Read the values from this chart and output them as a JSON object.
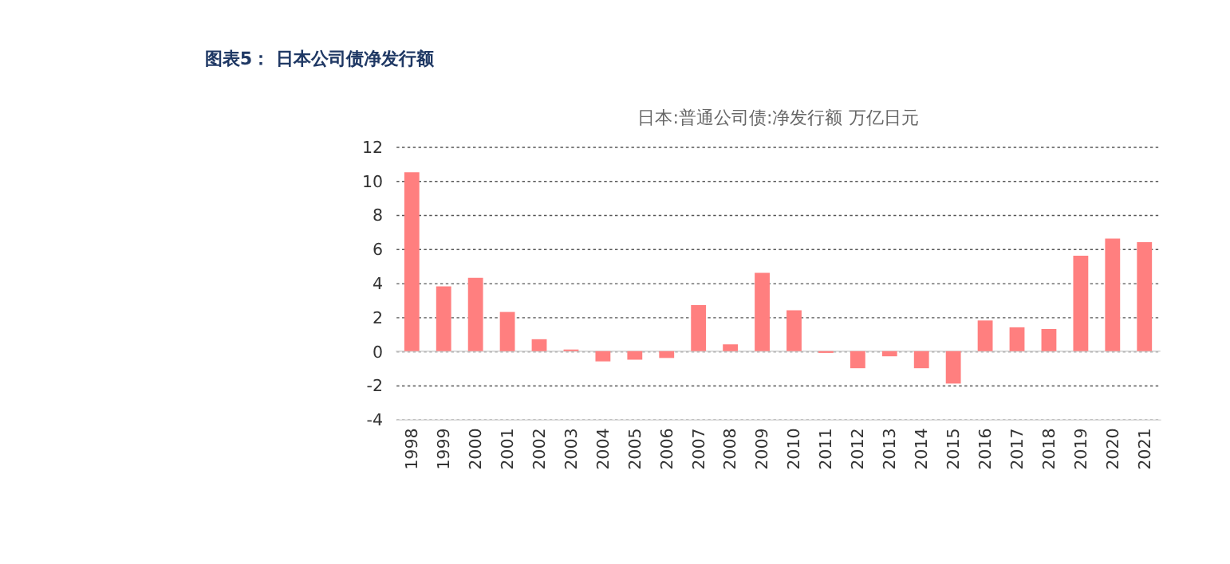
{
  "chart_data": {
    "type": "bar",
    "title": "图表5： 日本公司债净发行额",
    "subtitle": "日本:普通公司债:净发行额 万亿日元",
    "categories": [
      "1998",
      "1999",
      "2000",
      "2001",
      "2002",
      "2003",
      "2004",
      "2005",
      "2006",
      "2007",
      "2008",
      "2009",
      "2010",
      "2011",
      "2012",
      "2013",
      "2014",
      "2015",
      "2016",
      "2017",
      "2018",
      "2019",
      "2020",
      "2021"
    ],
    "values": [
      10.5,
      3.8,
      4.3,
      2.3,
      0.7,
      0.1,
      -0.6,
      -0.5,
      -0.4,
      2.7,
      0.4,
      4.6,
      2.4,
      -0.1,
      -1.0,
      -0.3,
      -1.0,
      -1.9,
      1.8,
      1.4,
      1.3,
      5.6,
      6.6,
      6.4
    ],
    "color": "#ff7f7f",
    "ylim": [
      -4,
      12
    ],
    "yticks": [
      -4,
      -2,
      0,
      2,
      4,
      6,
      8,
      10,
      12
    ],
    "grid": "y"
  }
}
